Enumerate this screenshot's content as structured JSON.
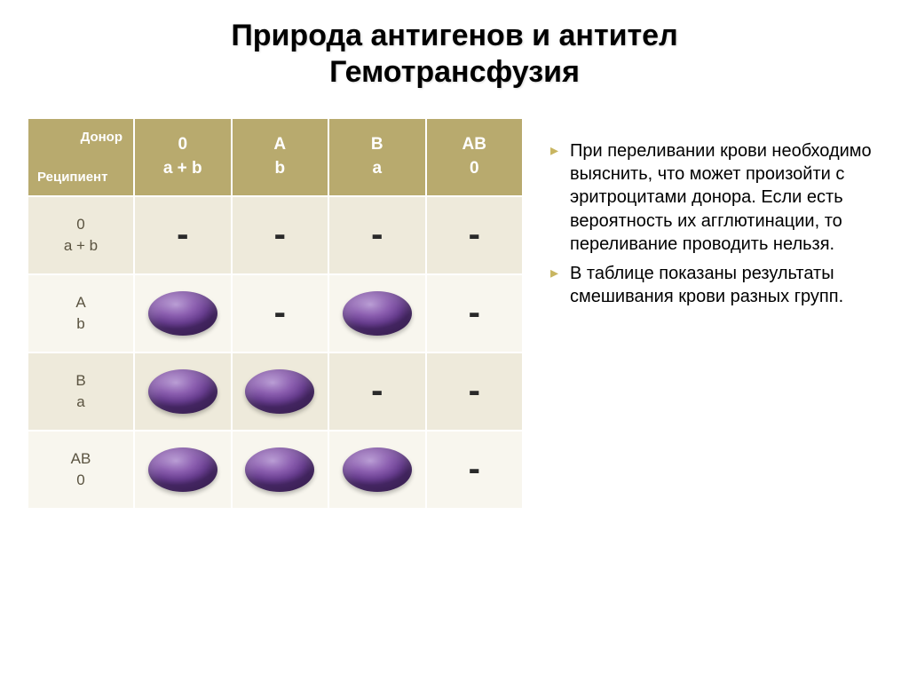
{
  "title_line1": "Природа антигенов и антител",
  "title_line2": "Гемотрансфузия",
  "table": {
    "corner_top": "Донор",
    "corner_bottom": "Реципиент",
    "columns": [
      {
        "line1": "0",
        "line2": "a + b"
      },
      {
        "line1": "A",
        "line2": "b"
      },
      {
        "line1": "B",
        "line2": "a"
      },
      {
        "line1": "AB",
        "line2": "0"
      }
    ],
    "rows": [
      {
        "label_line1": "0",
        "label_line2": "a + b",
        "cells": [
          "dash",
          "dash",
          "dash",
          "dash"
        ]
      },
      {
        "label_line1": "A",
        "label_line2": "b",
        "cells": [
          "blob",
          "dash",
          "blob",
          "dash"
        ]
      },
      {
        "label_line1": "B",
        "label_line2": "a",
        "cells": [
          "blob",
          "blob",
          "dash",
          "dash"
        ]
      },
      {
        "label_line1": "AB",
        "label_line2": "0",
        "cells": [
          "blob",
          "blob",
          "blob",
          "dash"
        ]
      }
    ],
    "header_bg": "#b8aa6e",
    "header_text_color": "#ffffff",
    "row_odd_bg": "#eeeadb",
    "row_even_bg": "#f8f6ee",
    "rowhead_text_color": "#5a5340",
    "dash_color": "#2a2a2a",
    "blob_gradient": [
      "#b89bd4",
      "#8c5fb0",
      "#6b3f94",
      "#4f2c72"
    ],
    "border_color": "#ffffff"
  },
  "bullets": [
    "При переливании крови необходимо выяснить, что может произойти с эритроцитами донора. Если есть вероятность их агглютинации, то переливание проводить нельзя.",
    "В таблице показаны результаты смешивания крови разных групп."
  ],
  "colors": {
    "background": "#ffffff",
    "title_color": "#000000",
    "bullet_marker": "#c8b560",
    "body_text": "#000000"
  },
  "typography": {
    "title_fontsize": 34,
    "header_fontsize": 19,
    "rowhead_fontsize": 17,
    "dash_fontsize": 40,
    "bullet_fontsize": 20
  }
}
